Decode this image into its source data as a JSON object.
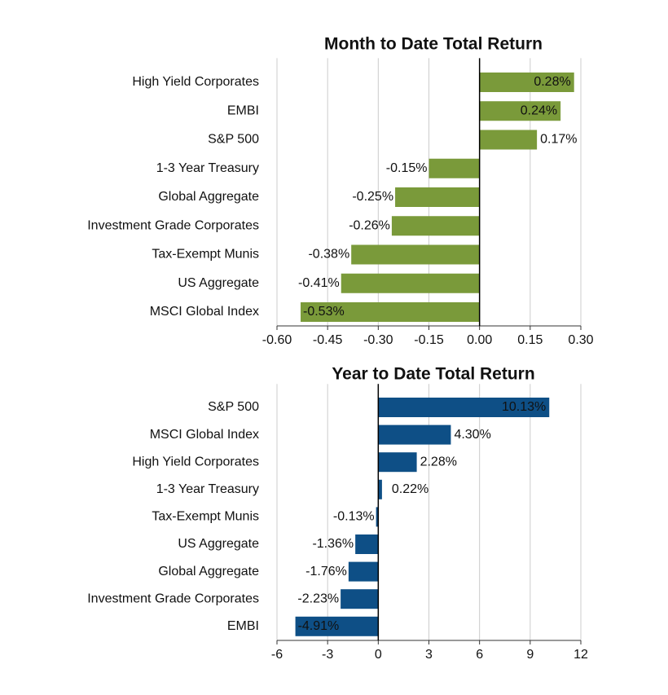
{
  "chart_data": [
    {
      "type": "hbar",
      "title": "Month to Date Total Return",
      "categories": [
        "High Yield Corporates",
        "EMBI",
        "S&P 500",
        "1-3 Year Treasury",
        "Global Aggregate",
        "Investment Grade Corporates",
        "Tax-Exempt Munis",
        "US Aggregate",
        "MSCI Global Index"
      ],
      "values": [
        0.28,
        0.24,
        0.17,
        -0.15,
        -0.25,
        -0.26,
        -0.38,
        -0.41,
        -0.53
      ],
      "value_labels": [
        "0.28%",
        "0.24%",
        "0.17%",
        "-0.15%",
        "-0.25%",
        "-0.26%",
        "-0.38%",
        "-0.41%",
        "-0.53%"
      ],
      "color": "#7a9a3a",
      "xlim": [
        -0.6,
        0.3
      ],
      "xticks": [
        {
          "value": -0.6,
          "label": "-0.60"
        },
        {
          "value": -0.45,
          "label": "-0.45"
        },
        {
          "value": -0.3,
          "label": "-0.30"
        },
        {
          "value": -0.15,
          "label": "-0.15"
        },
        {
          "value": 0,
          "label": "0.00"
        },
        {
          "value": 0.15,
          "label": "0.15"
        },
        {
          "value": 0.3,
          "label": "0.30"
        }
      ],
      "grid": true
    },
    {
      "type": "hbar",
      "title": "Year to Date Total Return",
      "categories": [
        "S&P 500",
        "MSCI Global Index",
        "High Yield Corporates",
        "1-3 Year Treasury",
        "Tax-Exempt Munis",
        "US Aggregate",
        "Global Aggregate",
        "Investment Grade Corporates",
        "EMBI"
      ],
      "values": [
        10.13,
        4.3,
        2.28,
        0.22,
        -0.13,
        -1.36,
        -1.76,
        -2.23,
        -4.91
      ],
      "value_labels": [
        "10.13%",
        "4.30%",
        "2.28%",
        "0.22%",
        "-0.13%",
        "-1.36%",
        "-1.76%",
        "-2.23%",
        "-4.91%"
      ],
      "color": "#0e4f86",
      "xlim": [
        -6,
        12
      ],
      "xticks": [
        -6,
        -3,
        0,
        3,
        6,
        9,
        12
      ],
      "grid": true
    }
  ]
}
